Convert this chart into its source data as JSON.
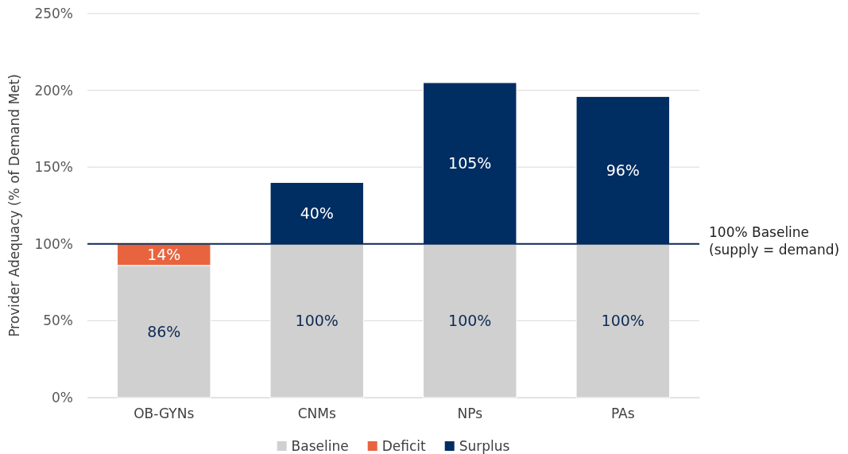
{
  "chart_data": {
    "type": "bar",
    "stacked": true,
    "ylabel": "Provider Adequacy (% of Demand Met)",
    "categories": [
      "OB-GYNs",
      "CNMs",
      "NPs",
      "PAs"
    ],
    "series": [
      {
        "name": "Baseline",
        "color": "#d0d0d0",
        "values": [
          86,
          100,
          100,
          100
        ],
        "value_labels": [
          "86%",
          "100%",
          "100%",
          "100%"
        ]
      },
      {
        "name": "Deficit",
        "color": "#e8643f",
        "values": [
          14,
          null,
          null,
          null
        ],
        "value_labels": [
          "14%",
          null,
          null,
          null
        ]
      },
      {
        "name": "Surplus",
        "color": "#002d62",
        "values": [
          null,
          40,
          105,
          96
        ],
        "value_labels": [
          null,
          "40%",
          "105%",
          "96%"
        ]
      }
    ],
    "ylim": [
      0,
      250
    ],
    "yticks": [
      {
        "value": 0,
        "label": "0%"
      },
      {
        "value": 50,
        "label": "50%"
      },
      {
        "value": 100,
        "label": "100%"
      },
      {
        "value": 150,
        "label": "150%"
      },
      {
        "value": 200,
        "label": "200%"
      },
      {
        "value": 250,
        "label": "250%"
      }
    ],
    "grid": "y",
    "legend": "bottom",
    "ref_lines": [
      {
        "axis": "y",
        "value": 100,
        "label": "100% Baseline\n(supply = demand)",
        "color": "#0d2b55"
      }
    ]
  }
}
